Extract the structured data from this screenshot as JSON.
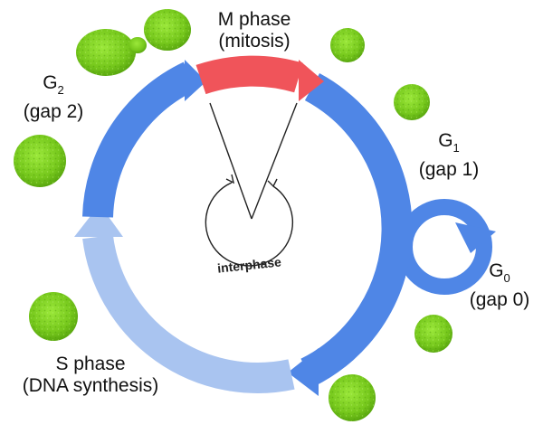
{
  "phases": {
    "m": {
      "title": "M phase",
      "desc": "(mitosis)"
    },
    "g1": {
      "letter": "G",
      "sub": "1",
      "desc": "(gap 1)"
    },
    "g2": {
      "letter": "G",
      "sub": "2",
      "desc": "(gap 2)"
    },
    "g0": {
      "letter": "G",
      "sub": "0",
      "desc": "(gap 0)"
    },
    "s": {
      "title": "S phase",
      "desc": "(DNA synthesis)"
    }
  },
  "interphase_label": "interphase",
  "colors": {
    "m_phase": "#f0545a",
    "g_phase": "#4f86e6",
    "s_phase": "#a9c4f0",
    "cell": "#7dd01e",
    "cell_dark": "#5aa80f"
  }
}
